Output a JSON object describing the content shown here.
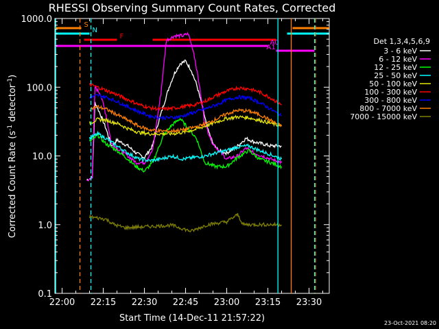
{
  "chart_data": {
    "type": "line",
    "title": "RHESSI Observing Summary Count Rates, Corrected",
    "xlabel": "Start Time (14-Dec-11 21:57:22)",
    "ylabel": "Corrected Count Rate (s⁻¹ detector⁻¹)",
    "ylabel_main": "Corrected Count Rate (s",
    "ylabel_sup1": "-1",
    "ylabel_mid": " detector",
    "ylabel_sup2": "-1",
    "ylabel_end": ")",
    "y_scale": "log",
    "ylim": [
      0.1,
      1000
    ],
    "xlim": [
      "21:57:22",
      "23:37:22"
    ],
    "y_ticks": [
      "0.1",
      "1.0",
      "10.0",
      "100.0",
      "1000.0"
    ],
    "x_ticks": [
      "22:00",
      "22:15",
      "22:30",
      "22:45",
      "23:00",
      "23:15",
      "23:30"
    ],
    "legend_title": "Det 1,3,4,5,6,9",
    "legend_position": "right",
    "series": [
      {
        "name": "3 - 6 keV",
        "color": "#ffffff",
        "points": [
          [
            "22:09",
            4.5
          ],
          [
            "22:11",
            4.8
          ],
          [
            "22:12",
            60
          ],
          [
            "22:14",
            40
          ],
          [
            "22:16",
            25
          ],
          [
            "22:18",
            14
          ],
          [
            "22:20",
            17
          ],
          [
            "22:24",
            14
          ],
          [
            "22:27",
            11
          ],
          [
            "22:30",
            9.5
          ],
          [
            "22:33",
            14
          ],
          [
            "22:35",
            30
          ],
          [
            "22:37",
            55
          ],
          [
            "22:39",
            100
          ],
          [
            "22:41",
            160
          ],
          [
            "22:43",
            220
          ],
          [
            "22:45",
            240
          ],
          [
            "22:47",
            180
          ],
          [
            "22:49",
            110
          ],
          [
            "22:51",
            55
          ],
          [
            "22:53",
            25
          ],
          [
            "22:55",
            15
          ],
          [
            "22:57",
            12
          ],
          [
            "23:00",
            11
          ],
          [
            "23:04",
            14
          ],
          [
            "23:07",
            18
          ],
          [
            "23:10",
            16
          ],
          [
            "23:13",
            15
          ],
          [
            "23:16",
            14
          ],
          [
            "23:20",
            14
          ]
        ]
      },
      {
        "name": "6 - 12 keV",
        "color": "#ff00ff",
        "points": [
          [
            "22:09",
            4.2
          ],
          [
            "22:11",
            5
          ],
          [
            "22:12",
            100
          ],
          [
            "22:14",
            80
          ],
          [
            "22:16",
            40
          ],
          [
            "22:18",
            15
          ],
          [
            "22:20",
            13
          ],
          [
            "22:24",
            10
          ],
          [
            "22:27",
            8
          ],
          [
            "22:30",
            8
          ],
          [
            "22:33",
            12
          ],
          [
            "22:36",
            80
          ],
          [
            "22:38",
            480
          ],
          [
            "22:41",
            560
          ],
          [
            "22:44",
            560
          ],
          [
            "22:46",
            600
          ],
          [
            "22:48",
            320
          ],
          [
            "22:50",
            110
          ],
          [
            "22:52",
            30
          ],
          [
            "22:55",
            15
          ],
          [
            "22:58",
            11
          ],
          [
            "23:00",
            9
          ],
          [
            "23:04",
            10
          ],
          [
            "23:07",
            13
          ],
          [
            "23:10",
            11
          ],
          [
            "23:13",
            10
          ],
          [
            "23:16",
            9
          ],
          [
            "23:20",
            8
          ]
        ]
      },
      {
        "name": "12 - 25 keV",
        "color": "#00ff00",
        "points": [
          [
            "22:10",
            16
          ],
          [
            "22:13",
            20
          ],
          [
            "22:16",
            15
          ],
          [
            "22:20",
            12
          ],
          [
            "22:24",
            9
          ],
          [
            "22:27",
            7
          ],
          [
            "22:30",
            6
          ],
          [
            "22:33",
            8
          ],
          [
            "22:37",
            20
          ],
          [
            "22:40",
            28
          ],
          [
            "22:43",
            35
          ],
          [
            "22:46",
            25
          ],
          [
            "22:49",
            18
          ],
          [
            "22:52",
            8
          ],
          [
            "22:56",
            7
          ],
          [
            "23:00",
            7
          ],
          [
            "23:04",
            9.5
          ],
          [
            "23:08",
            12
          ],
          [
            "23:12",
            9
          ],
          [
            "23:16",
            8
          ],
          [
            "23:20",
            7
          ]
        ]
      },
      {
        "name": "25 - 50 keV",
        "color": "#00ffff",
        "points": [
          [
            "22:10",
            18
          ],
          [
            "22:13",
            21
          ],
          [
            "22:16",
            18
          ],
          [
            "22:20",
            14
          ],
          [
            "22:24",
            11
          ],
          [
            "22:28",
            9
          ],
          [
            "22:32",
            8.5
          ],
          [
            "22:36",
            9
          ],
          [
            "22:40",
            10
          ],
          [
            "22:44",
            9
          ],
          [
            "22:48",
            9.5
          ],
          [
            "22:52",
            10
          ],
          [
            "22:56",
            11
          ],
          [
            "23:00",
            12
          ],
          [
            "23:04",
            13.5
          ],
          [
            "23:08",
            14
          ],
          [
            "23:12",
            12
          ],
          [
            "23:16",
            10.5
          ],
          [
            "23:20",
            9
          ]
        ]
      },
      {
        "name": "50 - 100 keV",
        "color": "#e8e800",
        "points": [
          [
            "22:10",
            30
          ],
          [
            "22:13",
            34
          ],
          [
            "22:16",
            33
          ],
          [
            "22:20",
            30
          ],
          [
            "22:24",
            25
          ],
          [
            "22:28",
            22
          ],
          [
            "22:32",
            21
          ],
          [
            "22:36",
            21
          ],
          [
            "22:40",
            21
          ],
          [
            "22:44",
            22
          ],
          [
            "22:48",
            24
          ],
          [
            "22:52",
            27
          ],
          [
            "22:56",
            31
          ],
          [
            "23:00",
            35
          ],
          [
            "23:04",
            37
          ],
          [
            "23:08",
            36
          ],
          [
            "23:12",
            33
          ],
          [
            "23:16",
            30
          ],
          [
            "23:20",
            27
          ]
        ]
      },
      {
        "name": "100 - 300 keV",
        "color": "#ff0000",
        "points": [
          [
            "22:10",
            110
          ],
          [
            "22:13",
            100
          ],
          [
            "22:16",
            90
          ],
          [
            "22:20",
            78
          ],
          [
            "22:24",
            66
          ],
          [
            "22:28",
            56
          ],
          [
            "22:32",
            50
          ],
          [
            "22:36",
            48
          ],
          [
            "22:40",
            49
          ],
          [
            "22:44",
            52
          ],
          [
            "22:48",
            55
          ],
          [
            "22:52",
            62
          ],
          [
            "22:56",
            75
          ],
          [
            "23:00",
            88
          ],
          [
            "23:04",
            98
          ],
          [
            "23:08",
            95
          ],
          [
            "23:12",
            85
          ],
          [
            "23:16",
            70
          ],
          [
            "23:20",
            55
          ]
        ]
      },
      {
        "name": "300 - 800 keV",
        "color": "#0000ff",
        "points": [
          [
            "22:10",
            70
          ],
          [
            "22:13",
            76
          ],
          [
            "22:16",
            72
          ],
          [
            "22:20",
            62
          ],
          [
            "22:24",
            52
          ],
          [
            "22:28",
            44
          ],
          [
            "22:32",
            38
          ],
          [
            "22:36",
            36
          ],
          [
            "22:40",
            36
          ],
          [
            "22:44",
            38
          ],
          [
            "22:48",
            43
          ],
          [
            "22:52",
            48
          ],
          [
            "22:56",
            55
          ],
          [
            "23:00",
            65
          ],
          [
            "23:04",
            72
          ],
          [
            "23:08",
            70
          ],
          [
            "23:12",
            60
          ],
          [
            "23:16",
            48
          ],
          [
            "23:20",
            38
          ]
        ]
      },
      {
        "name": "800 - 7000 keV",
        "color": "#ff8000",
        "points": [
          [
            "22:10",
            48
          ],
          [
            "22:13",
            52
          ],
          [
            "22:16",
            48
          ],
          [
            "22:20",
            40
          ],
          [
            "22:24",
            33
          ],
          [
            "22:28",
            27
          ],
          [
            "22:32",
            24
          ],
          [
            "22:36",
            23
          ],
          [
            "22:40",
            23
          ],
          [
            "22:44",
            24
          ],
          [
            "22:48",
            26
          ],
          [
            "22:52",
            29
          ],
          [
            "22:56",
            34
          ],
          [
            "23:00",
            41
          ],
          [
            "23:04",
            46
          ],
          [
            "23:08",
            45
          ],
          [
            "23:12",
            40
          ],
          [
            "23:16",
            33
          ],
          [
            "23:20",
            27
          ]
        ]
      },
      {
        "name": "7000 - 15000 keV",
        "color": "#808000",
        "points": [
          [
            "22:10",
            1.3
          ],
          [
            "22:16",
            1.2
          ],
          [
            "22:19",
            1.0
          ],
          [
            "22:23",
            0.9
          ],
          [
            "22:40",
            0.98
          ],
          [
            "22:47",
            0.8
          ],
          [
            "22:53",
            1.0
          ],
          [
            "23:00",
            1.1
          ],
          [
            "23:04",
            1.4
          ],
          [
            "23:06",
            1.0
          ],
          [
            "23:14",
            1.0
          ],
          [
            "23:20",
            1.0
          ]
        ]
      }
    ],
    "annotations": {
      "flags": [
        {
          "label": "S",
          "color": "#ff8000",
          "start": "21:57:22",
          "end": "22:07"
        },
        {
          "label": "",
          "color": "#ff8000",
          "start": "23:24",
          "end": "23:37:22"
        },
        {
          "label": "N",
          "color": "#00ffff",
          "start": "21:57:22",
          "end": "22:10"
        },
        {
          "label": "",
          "color": "#00ffff",
          "start": "23:22",
          "end": "23:37:22"
        },
        {
          "label": "F",
          "color": "#ff0000",
          "start": "22:08",
          "end": "22:20"
        },
        {
          "label": "",
          "color": "#ff0000",
          "start": "22:33",
          "end": "23:18"
        },
        {
          "label": "A0",
          "color": "#ff00ff",
          "start": "21:57:22",
          "end": "23:15"
        },
        {
          "label": "A1",
          "color": "#ff00ff",
          "start": "23:18",
          "end": "23:32"
        }
      ],
      "vertical_lines": [
        {
          "time": "21:57:40",
          "color": "#00ffff",
          "style": "solid"
        },
        {
          "time": "22:06:30",
          "color": "#ff8000",
          "style": "dashed"
        },
        {
          "time": "22:10:30",
          "color": "#00ffff",
          "style": "dashed"
        },
        {
          "time": "23:18:40",
          "color": "#00ffff",
          "style": "solid"
        },
        {
          "time": "23:23:30",
          "color": "#ff8000",
          "style": "solid"
        },
        {
          "time": "23:32:00",
          "color": "#00ffff",
          "style": "dashed"
        },
        {
          "time": "23:32:20",
          "color": "#ff8000",
          "style": "dashed"
        }
      ]
    },
    "timestamp": "23-Oct-2021 08:20"
  }
}
